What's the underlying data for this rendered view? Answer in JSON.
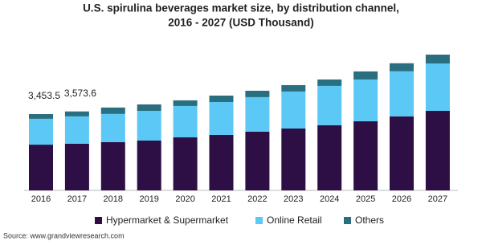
{
  "chart_data": {
    "type": "stacked-bar",
    "title": [
      "U.S. spirulina beverages market size, by distribution channel,",
      "2016 - 2027 (USD Thousand)"
    ],
    "categories": [
      "2016",
      "2017",
      "2018",
      "2019",
      "2020",
      "2021",
      "2022",
      "2023",
      "2024",
      "2025",
      "2026",
      "2027"
    ],
    "series": [
      {
        "name": "Hypermarket & Supermarket",
        "color": "#2e0f45",
        "values": [
          2070,
          2110,
          2185,
          2255,
          2400,
          2510,
          2655,
          2800,
          2950,
          3130,
          3350,
          3600
        ]
      },
      {
        "name": "Online Retail",
        "color": "#5bc8f5",
        "values": [
          1170,
          1240,
          1275,
          1345,
          1420,
          1490,
          1565,
          1675,
          1780,
          1890,
          2040,
          2145
        ]
      },
      {
        "name": "Others",
        "color": "#2a6f7f",
        "values": [
          213.5,
          223.6,
          290,
          290,
          255,
          290,
          290,
          290,
          290,
          365,
          365,
          400
        ]
      }
    ],
    "annotations": [
      {
        "category": "2016",
        "value": 3453.5,
        "label": "3,453.5"
      },
      {
        "category": "2017",
        "value": 3573.6,
        "label": "3,573.6"
      }
    ],
    "source": "Source: www.grandviewresearch.com"
  }
}
